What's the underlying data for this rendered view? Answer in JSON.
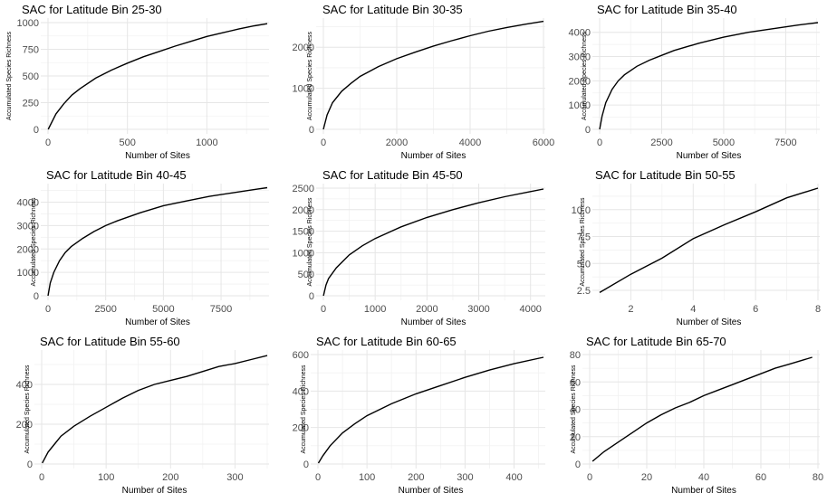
{
  "chart_data": [
    {
      "type": "line",
      "title": "SAC for Latitude Bin 25-30",
      "xlabel": "Number of Sites",
      "ylabel": "Accumulated Species Richness",
      "xlim": [
        0,
        1380
      ],
      "ylim": [
        0,
        1000
      ],
      "xticks": [
        0,
        500,
        1000
      ],
      "xtick_labels": [
        "0",
        "500",
        "1000"
      ],
      "yticks": [
        0,
        250,
        500,
        750,
        1000
      ],
      "ytick_labels": [
        "0",
        "250",
        "500",
        "750",
        "1000"
      ],
      "x": [
        1,
        50,
        100,
        150,
        200,
        300,
        400,
        500,
        600,
        700,
        800,
        900,
        1000,
        1100,
        1200,
        1300,
        1380
      ],
      "y": [
        0,
        145,
        240,
        320,
        380,
        480,
        555,
        620,
        680,
        730,
        780,
        825,
        870,
        905,
        940,
        970,
        990
      ]
    },
    {
      "type": "line",
      "title": "SAC for Latitude Bin 30-35",
      "xlabel": "Number of Sites",
      "ylabel": "Accumulated Species Richness",
      "xlim": [
        0,
        6000
      ],
      "ylim": [
        0,
        2600
      ],
      "xticks": [
        0,
        2000,
        4000,
        6000
      ],
      "xtick_labels": [
        "0",
        "2000",
        "4000",
        "6000"
      ],
      "yticks": [
        0,
        1000,
        2000
      ],
      "ytick_labels": [
        "0",
        "1000",
        "2000"
      ],
      "x": [
        1,
        100,
        250,
        500,
        750,
        1000,
        1500,
        2000,
        2500,
        3000,
        3500,
        4000,
        4500,
        5000,
        5500,
        6000
      ],
      "y": [
        0,
        350,
        650,
        930,
        1120,
        1290,
        1530,
        1720,
        1880,
        2030,
        2160,
        2280,
        2390,
        2480,
        2560,
        2630
      ]
    },
    {
      "type": "line",
      "title": "SAC for Latitude Bin 35-40",
      "xlabel": "Number of Sites",
      "ylabel": "Accumulated Species Richness",
      "xlim": [
        0,
        8800
      ],
      "ylim": [
        0,
        4400
      ],
      "xticks": [
        0,
        2500,
        5000,
        7500
      ],
      "xtick_labels": [
        "0",
        "2500",
        "5000",
        "7500"
      ],
      "yticks": [
        0,
        1000,
        2000,
        3000,
        4000
      ],
      "ytick_labels": [
        "0",
        "1000",
        "2000",
        "3000",
        "4000"
      ],
      "x": [
        1,
        100,
        250,
        500,
        750,
        1000,
        1500,
        2000,
        2500,
        3000,
        4000,
        5000,
        6000,
        7000,
        8000,
        8800
      ],
      "y": [
        0,
        550,
        1100,
        1650,
        2000,
        2250,
        2600,
        2850,
        3050,
        3250,
        3550,
        3800,
        4000,
        4150,
        4300,
        4400
      ]
    },
    {
      "type": "line",
      "title": "SAC for Latitude Bin 40-45",
      "xlabel": "Number of Sites",
      "ylabel": "Accumulated Species Richness",
      "xlim": [
        0,
        9500
      ],
      "ylim": [
        0,
        4600
      ],
      "xticks": [
        0,
        2500,
        5000,
        7500
      ],
      "xtick_labels": [
        "0",
        "2500",
        "5000",
        "7500"
      ],
      "yticks": [
        0,
        1000,
        2000,
        3000,
        4000
      ],
      "ytick_labels": [
        "0",
        "1000",
        "2000",
        "3000",
        "4000"
      ],
      "x": [
        1,
        100,
        250,
        500,
        750,
        1000,
        1500,
        2000,
        2500,
        3000,
        4000,
        5000,
        6000,
        7000,
        8000,
        9000,
        9500
      ],
      "y": [
        0,
        550,
        1000,
        1500,
        1850,
        2100,
        2450,
        2750,
        3000,
        3200,
        3550,
        3850,
        4050,
        4250,
        4400,
        4550,
        4620
      ]
    },
    {
      "type": "line",
      "title": "SAC for Latitude Bin 45-50",
      "xlabel": "Number of Sites",
      "ylabel": "Accumulated Species Richness",
      "xlim": [
        0,
        4250
      ],
      "ylim": [
        0,
        2500
      ],
      "xticks": [
        0,
        1000,
        2000,
        3000,
        4000
      ],
      "xtick_labels": [
        "0",
        "1000",
        "2000",
        "3000",
        "4000"
      ],
      "yticks": [
        0,
        500,
        1000,
        1500,
        2000,
        2500
      ],
      "ytick_labels": [
        "0",
        "500",
        "1000",
        "1500",
        "2000",
        "2500"
      ],
      "x": [
        1,
        50,
        100,
        250,
        500,
        750,
        1000,
        1500,
        2000,
        2500,
        3000,
        3500,
        4000,
        4250
      ],
      "y": [
        0,
        250,
        400,
        650,
        950,
        1160,
        1330,
        1600,
        1820,
        2000,
        2160,
        2300,
        2420,
        2480
      ]
    },
    {
      "type": "line",
      "title": "SAC for Latitude Bin 50-55",
      "xlabel": "Number of Sites",
      "ylabel": "Accumulated Species Richness",
      "xlim": [
        1,
        8
      ],
      "ylim": [
        2,
        12
      ],
      "xticks": [
        2,
        4,
        6,
        8
      ],
      "xtick_labels": [
        "2",
        "4",
        "6",
        "8"
      ],
      "yticks": [
        2.5,
        5,
        7.5,
        10
      ],
      "ytick_labels": [
        "2.5",
        "5.0",
        "7.5",
        "10.0"
      ],
      "x": [
        1,
        2,
        3,
        4,
        5,
        6,
        7,
        8
      ],
      "y": [
        2.3,
        4.0,
        5.5,
        7.3,
        8.6,
        9.8,
        11.1,
        12.0
      ]
    },
    {
      "type": "line",
      "title": "SAC for Latitude Bin 55-60",
      "xlabel": "Number of Sites",
      "ylabel": "Accumulated Species Richness",
      "xlim": [
        0,
        350
      ],
      "ylim": [
        0,
        550
      ],
      "xticks": [
        0,
        100,
        200,
        300
      ],
      "xtick_labels": [
        "0",
        "100",
        "200",
        "300"
      ],
      "yticks": [
        0,
        200,
        400
      ],
      "ytick_labels": [
        "0",
        "200",
        "400"
      ],
      "x": [
        1,
        10,
        20,
        30,
        50,
        75,
        100,
        125,
        150,
        175,
        200,
        225,
        250,
        275,
        300,
        325,
        350
      ],
      "y": [
        5,
        60,
        100,
        140,
        190,
        240,
        285,
        330,
        370,
        400,
        420,
        440,
        465,
        490,
        505,
        525,
        545
      ]
    },
    {
      "type": "line",
      "title": "SAC for Latitude Bin 60-65",
      "xlabel": "Number of Sites",
      "ylabel": "Accumulated Species Richness",
      "xlim": [
        0,
        460
      ],
      "ylim": [
        0,
        600
      ],
      "xticks": [
        0,
        100,
        200,
        300,
        400
      ],
      "xtick_labels": [
        "0",
        "100",
        "200",
        "300",
        "400"
      ],
      "yticks": [
        0,
        200,
        400,
        600
      ],
      "ytick_labels": [
        "0",
        "200",
        "400",
        "600"
      ],
      "x": [
        1,
        10,
        25,
        50,
        75,
        100,
        150,
        200,
        250,
        300,
        350,
        400,
        460
      ],
      "y": [
        5,
        45,
        100,
        170,
        220,
        265,
        330,
        385,
        430,
        475,
        515,
        550,
        585
      ]
    },
    {
      "type": "line",
      "title": "SAC for Latitude Bin 65-70",
      "xlabel": "Number of Sites",
      "ylabel": "Accumulated Species Richness",
      "xlim": [
        0,
        80
      ],
      "ylim": [
        0,
        80
      ],
      "xticks": [
        0,
        20,
        40,
        60,
        80
      ],
      "xtick_labels": [
        "0",
        "20",
        "40",
        "60",
        "80"
      ],
      "yticks": [
        0,
        20,
        40,
        60,
        80
      ],
      "ytick_labels": [
        "0",
        "20",
        "40",
        "60",
        "80"
      ],
      "x": [
        1,
        5,
        10,
        15,
        20,
        25,
        30,
        35,
        40,
        45,
        50,
        55,
        60,
        65,
        70,
        78
      ],
      "y": [
        2,
        9,
        16,
        23,
        30,
        36,
        41,
        45,
        50,
        54,
        58,
        62,
        66,
        70,
        73,
        78
      ]
    }
  ]
}
